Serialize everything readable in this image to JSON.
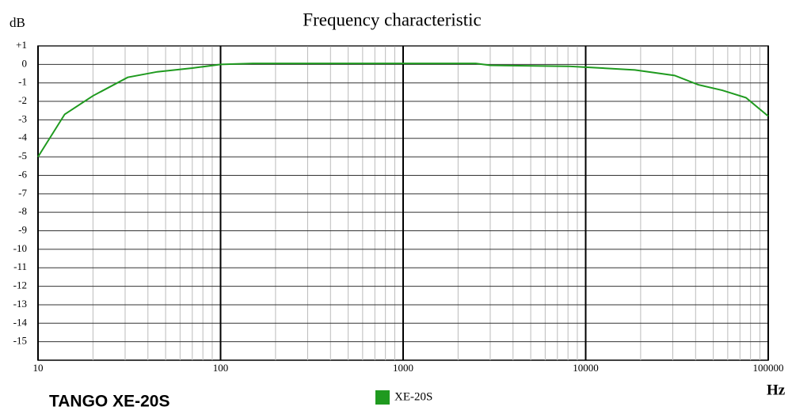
{
  "chart_data": {
    "type": "line",
    "title": "Frequency characteristic",
    "y_label": "dB",
    "x_label": "Hz",
    "caption": "TANGO XE-20S",
    "x": [
      10,
      14,
      20,
      31,
      45,
      70,
      100,
      150,
      1000,
      2500,
      3000,
      8000,
      10000,
      18600,
      30700,
      41400,
      56000,
      75500,
      100000
    ],
    "series": [
      {
        "name": "XE-20S",
        "color": "#1f9a1f",
        "values": [
          -5.0,
          -2.7,
          -1.7,
          -0.7,
          -0.4,
          -0.2,
          0,
          0.05,
          0.05,
          0.05,
          -0.05,
          -0.1,
          -0.15,
          -0.3,
          -0.6,
          -1.1,
          -1.4,
          -1.8,
          -2.8
        ]
      }
    ],
    "xlog": true,
    "xlim": [
      10,
      100000
    ],
    "xticks": [
      10,
      100,
      1000,
      10000,
      100000
    ],
    "ylim": [
      -16,
      1
    ],
    "yticks": [
      {
        "value": 1,
        "label": "+1"
      },
      0,
      -1,
      -2,
      -3,
      -4,
      -5,
      -6,
      -7,
      -8,
      -9,
      -10,
      -11,
      -12,
      -13,
      -14,
      -15
    ],
    "grid": true
  }
}
